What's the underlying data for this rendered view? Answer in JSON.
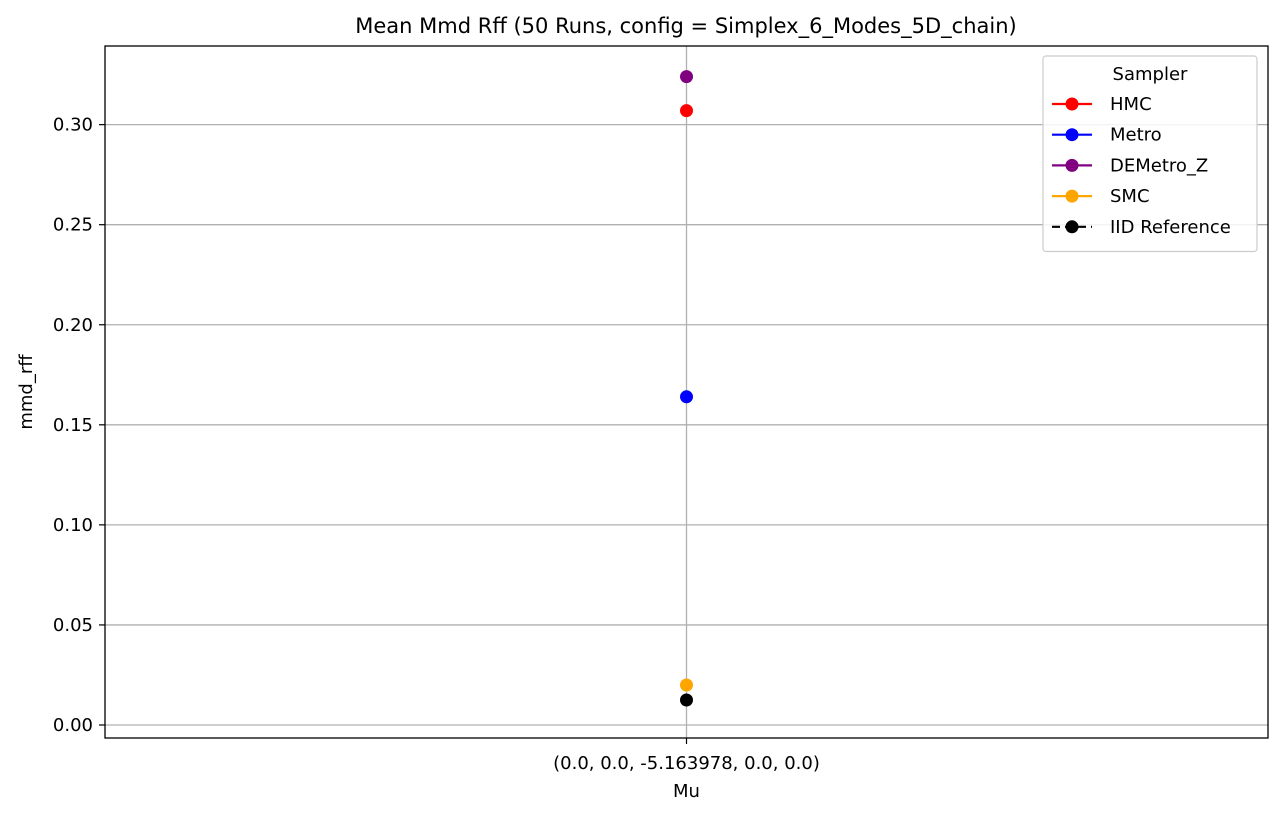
{
  "chart_data": {
    "type": "scatter",
    "title": "Mean Mmd Rff (50 Runs, config = Simplex_6_Modes_5D_chain)",
    "xlabel": "Mu",
    "ylabel": "mmd_rff",
    "categories": [
      "(0.0, 0.0, -5.163978, 0.0, 0.0)"
    ],
    "ylim": [
      -0.0065,
      0.3393
    ],
    "yticks": [
      "0.00",
      "0.05",
      "0.10",
      "0.15",
      "0.20",
      "0.25",
      "0.30"
    ],
    "ytick_values": [
      0.0,
      0.05,
      0.1,
      0.15,
      0.2,
      0.25,
      0.3
    ],
    "grid": true,
    "legend": {
      "title": "Sampler",
      "placement": "top-right"
    },
    "series": [
      {
        "name": "HMC",
        "color": "#ff0000",
        "values": [
          0.307
        ],
        "linestyle": "solid"
      },
      {
        "name": "Metro",
        "color": "#0000ff",
        "values": [
          0.164
        ],
        "linestyle": "solid"
      },
      {
        "name": "DEMetro_Z",
        "color": "#800080",
        "values": [
          0.324
        ],
        "linestyle": "solid"
      },
      {
        "name": "SMC",
        "color": "#ffa500",
        "values": [
          0.02
        ],
        "linestyle": "solid"
      },
      {
        "name": "IID Reference",
        "color": "#000000",
        "values": [
          0.0125
        ],
        "linestyle": "dashed"
      }
    ]
  }
}
